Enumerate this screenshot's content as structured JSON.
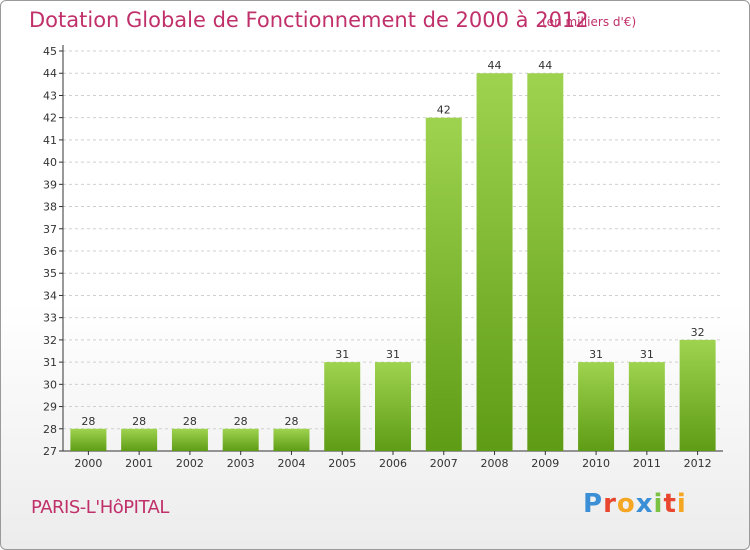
{
  "header": {
    "title": "Dotation Globale de Fonctionnement de 2000 à 2012",
    "unit": "(en milliers d'€)"
  },
  "footer": {
    "commune": "PARIS-L'HôPITAL",
    "logo": {
      "text": "Proxiti",
      "letters": [
        {
          "char": "P",
          "color": "#3b8fd6"
        },
        {
          "char": "r",
          "color": "#e8462f"
        },
        {
          "char": "o",
          "color": "#f5a623"
        },
        {
          "char": "x",
          "color": "#3b8fd6"
        },
        {
          "char": "i",
          "color": "#7cc242"
        },
        {
          "char": "t",
          "color": "#e8462f"
        },
        {
          "char": "i",
          "color": "#f5a623"
        }
      ]
    }
  },
  "colors": {
    "accent": "#c0306a",
    "bar_light": "#9ed34f",
    "bar_dark": "#5f9c15",
    "grid": "#d0d0d0",
    "axis": "#333333"
  },
  "chart_data": {
    "type": "bar",
    "title": "Dotation Globale de Fonctionnement de 2000 à 2012",
    "subtitle": "(en milliers d'€)",
    "xlabel": "",
    "ylabel": "",
    "categories": [
      "2000",
      "2001",
      "2002",
      "2003",
      "2004",
      "2005",
      "2006",
      "2007",
      "2008",
      "2009",
      "2010",
      "2011",
      "2012"
    ],
    "values": [
      28,
      28,
      28,
      28,
      28,
      31,
      31,
      42,
      44,
      44,
      31,
      31,
      32
    ],
    "ylim": [
      27,
      45
    ],
    "yticks": [
      27,
      28,
      29,
      30,
      31,
      32,
      33,
      34,
      35,
      36,
      37,
      38,
      39,
      40,
      41,
      42,
      43,
      44,
      45
    ],
    "grid": true,
    "legend": "none"
  }
}
